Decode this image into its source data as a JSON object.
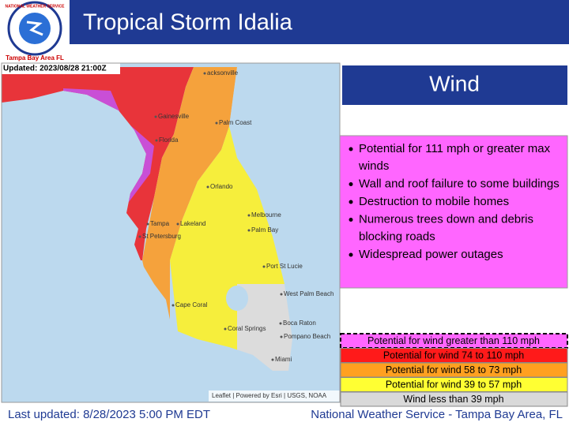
{
  "header": {
    "title": "Tropical Storm Idalia",
    "logo_text": "NATIONAL WEATHER SERVICE",
    "logo_office": "Tampa Bay Area FL"
  },
  "map": {
    "updated": "Updated: 2023/08/28 21:00Z",
    "attribution": "Leaflet | Powered by Esri | USGS, NOAA",
    "labels": [
      "acksonville",
      "Gainesville",
      "Florida",
      "Palm Coast",
      "Orlando",
      "Melbourne",
      "Palm Bay",
      "Tampa",
      "Lakeland",
      "St Petersburg",
      "Port St Lucie",
      "West Palm Beach",
      "Cape Coral",
      "Boca Raton",
      "Coral Springs",
      "Pompano Beach",
      "Miami"
    ]
  },
  "panel": {
    "title": "Wind",
    "bullets": [
      "Potential for 111 mph or greater max winds",
      "Wall and roof failure to some buildings",
      "Destruction to mobile homes",
      "Numerous trees down and debris blocking roads",
      "Widespread power outages"
    ]
  },
  "legend": [
    "Potential for wind greater than 110 mph",
    "Potential for wind 74 to 110 mph",
    "Potential for wind 58 to 73 mph",
    "Potential for wind 39 to 57 mph",
    "Wind less than 39 mph"
  ],
  "footer": {
    "left": "Last updated: 8/28/2023 5:00 PM EDT",
    "right": "National Weather Service - Tampa Bay Area, FL"
  }
}
